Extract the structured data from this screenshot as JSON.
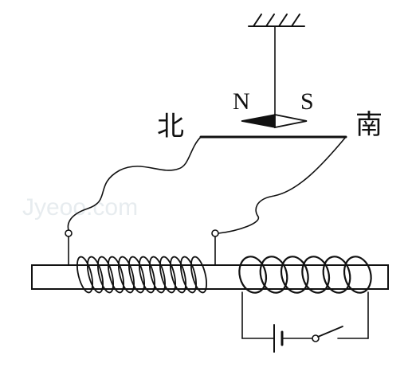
{
  "labels": {
    "needle_north": "N",
    "needle_south": "S",
    "direction_north": "北",
    "direction_south": "南"
  },
  "watermark": "Jyeoo.com",
  "colors": {
    "ink": "#111111",
    "watermark": "#e7ecef",
    "needle_south_fill": "#ffffff"
  }
}
